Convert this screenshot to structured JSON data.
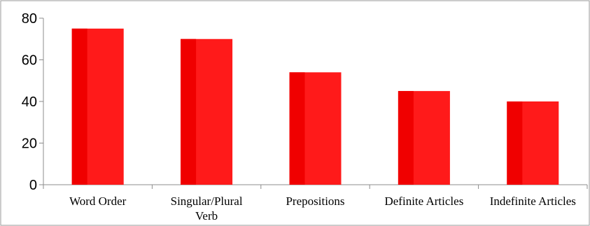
{
  "chart_data": {
    "type": "bar",
    "title": "",
    "xlabel": "",
    "ylabel": "",
    "categories": [
      "Word Order",
      "Singular/Plural Verb",
      "Prepositions",
      "Definite Articles",
      "Indefinite Articles"
    ],
    "category_lines": [
      [
        "Word Order"
      ],
      [
        "Singular/Plural",
        "Verb"
      ],
      [
        "Prepositions"
      ],
      [
        "Definite Articles"
      ],
      [
        "Indefinite Articles"
      ]
    ],
    "values": [
      75,
      70,
      54,
      45,
      40
    ],
    "ylim": [
      0,
      80
    ],
    "yticks": [
      0,
      20,
      40,
      60,
      80
    ],
    "grid": false,
    "legend": "none",
    "bar_color": "#ff1a1a",
    "bar_shade_color": "#f00000"
  }
}
